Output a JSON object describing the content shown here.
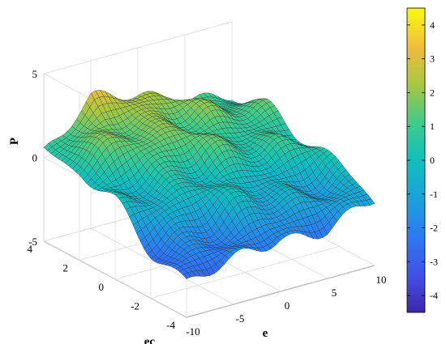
{
  "chart_data": {
    "type": "surface",
    "title": "",
    "xlabel": "e",
    "ylabel": "ec",
    "zlabel": "P",
    "xlim": [
      -10,
      10
    ],
    "ylim": [
      -4,
      4
    ],
    "zlim": [
      -5,
      5
    ],
    "x_ticks": [
      "-10",
      "-5",
      "0",
      "5",
      "10"
    ],
    "y_ticks": [
      "-4",
      "-2",
      "0",
      "2",
      "4"
    ],
    "z_ticks": [
      "-5",
      "0",
      "5"
    ],
    "colormap": "parula",
    "color_limits": [
      -4.5,
      4.5
    ],
    "colorbar_ticks": [
      "-4",
      "-3",
      "-2",
      "-1",
      "0",
      "1",
      "2",
      "3",
      "4"
    ],
    "grid": true,
    "surface_samples": {
      "e": [
        -10,
        -5,
        0,
        5,
        10
      ],
      "ec": [
        -4,
        -2,
        0,
        2,
        4
      ],
      "P": [
        [
          -3.0,
          -2.5,
          -1.8,
          -2.0,
          -1.2
        ],
        [
          -2.0,
          -1.2,
          -0.5,
          -0.8,
          -0.2
        ],
        [
          -0.6,
          0.3,
          0.8,
          0.4,
          0.6
        ],
        [
          0.4,
          1.6,
          1.8,
          1.3,
          0.9
        ],
        [
          0.5,
          2.7,
          2.0,
          1.4,
          0.6
        ]
      ]
    }
  }
}
